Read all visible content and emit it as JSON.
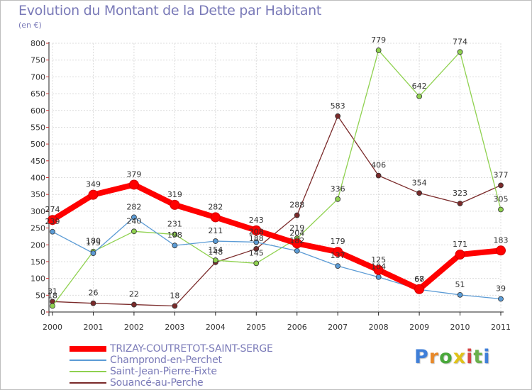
{
  "title": "Evolution du Montant de la Dette par Habitant",
  "unit": "(en €)",
  "logo": "Proxiti",
  "chart_data": {
    "type": "line",
    "title": "Evolution du Montant de la Dette par Habitant",
    "ylabel": "(en €)",
    "xlabel": "",
    "ylim": [
      0,
      800
    ],
    "yticks": [
      0,
      50,
      100,
      150,
      200,
      250,
      300,
      350,
      400,
      450,
      500,
      550,
      600,
      650,
      700,
      750,
      800
    ],
    "grid": true,
    "legend_position": "bottom-left",
    "x": [
      "2000",
      "2001",
      "2002",
      "2003",
      "2004",
      "2005",
      "2006",
      "2007",
      "2008",
      "2009",
      "2010",
      "2011"
    ],
    "series": [
      {
        "name": "TRIZAY-COUTRETOT-SAINT-SERGE",
        "color": "#ff0000",
        "values": [
          274,
          349,
          379,
          319,
          282,
          243,
          204,
          179,
          125,
          68,
          171,
          183
        ]
      },
      {
        "name": "Champrond-en-Perchet",
        "color": "#5b9bd5",
        "values": [
          239,
          175,
          282,
          198,
          211,
          208,
          182,
          137,
          104,
          67,
          51,
          39
        ]
      },
      {
        "name": "Saint-Jean-Pierre-Fixte",
        "color": "#8fd14f",
        "values": [
          18,
          180,
          240,
          231,
          154,
          145,
          219,
          336,
          779,
          642,
          774,
          305
        ]
      },
      {
        "name": "Souancé-au-Perche",
        "color": "#7a2a2a",
        "values": [
          31,
          26,
          22,
          18,
          148,
          188,
          288,
          583,
          406,
          354,
          323,
          377
        ]
      }
    ]
  }
}
